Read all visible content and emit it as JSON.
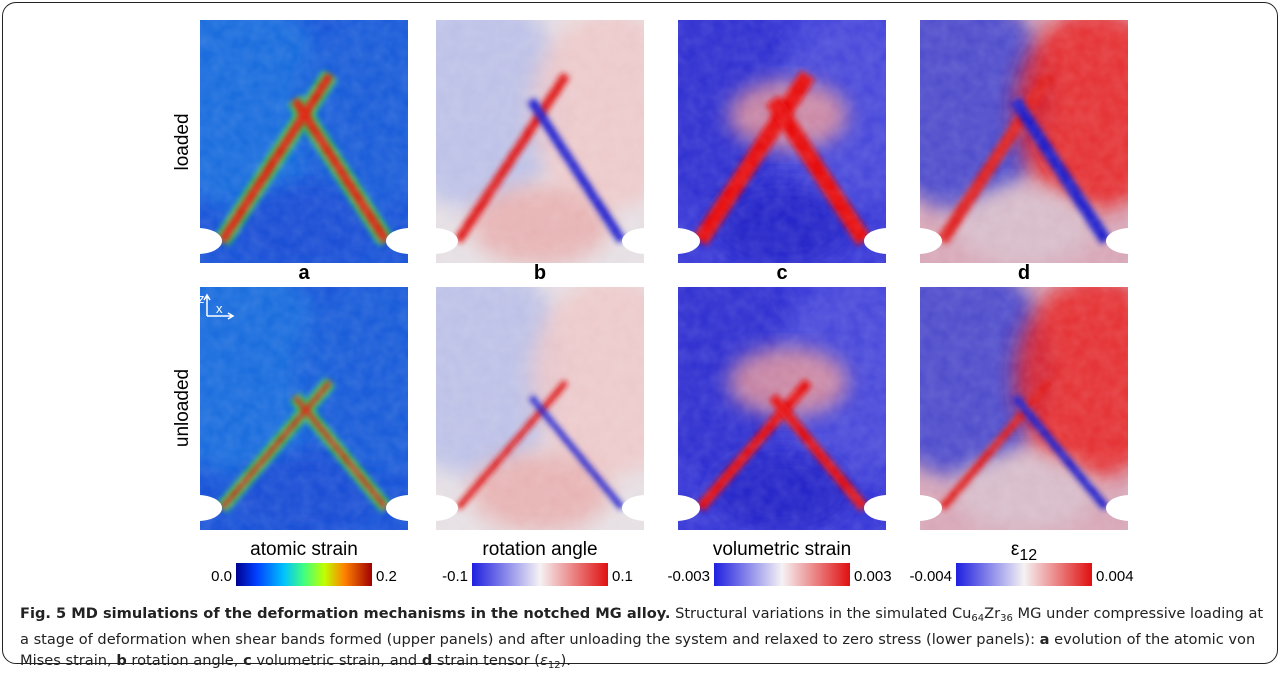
{
  "row_labels": [
    "loaded",
    "unloaded"
  ],
  "panel_labels": [
    "a",
    "b",
    "c",
    "d"
  ],
  "axes_indicator": {
    "z": "z",
    "x": "x"
  },
  "colorbars": [
    {
      "title": "atomic strain",
      "min": "0.0",
      "max": "0.2"
    },
    {
      "title": "rotation angle",
      "min": "-0.1",
      "max": "0.1"
    },
    {
      "title": "volumetric strain",
      "min": "-0.003",
      "max": "0.003"
    },
    {
      "title_symbol": "ε",
      "title_sub": "12",
      "min": "-0.004",
      "max": "0.004"
    }
  ],
  "caption": [
    {
      "text": "Fig. 5 MD simulations of the deformation mechanisms in the notched MG alloy.",
      "style": "bold"
    },
    {
      "text": " Structural variations in the simulated Cu",
      "style": "normal"
    },
    {
      "text": "64",
      "style": "sub"
    },
    {
      "text": "Zr",
      "style": "normal"
    },
    {
      "text": "36",
      "style": "sub"
    },
    {
      "text": " MG under compressive loading at a stage of deformation when shear bands formed (upper panels) and after unloading the system and relaxed to zero stress (lower panels): ",
      "style": "normal"
    },
    {
      "text": "a",
      "style": "bold"
    },
    {
      "text": " evolution of the atomic von Mises strain, ",
      "style": "normal"
    },
    {
      "text": "b",
      "style": "bold"
    },
    {
      "text": " rotation angle, ",
      "style": "normal"
    },
    {
      "text": "c",
      "style": "bold"
    },
    {
      "text": " volumetric strain, and ",
      "style": "normal"
    },
    {
      "text": "d",
      "style": "bold"
    },
    {
      "text": " strain tensor (",
      "style": "normal"
    },
    {
      "text": "ε",
      "style": "italic"
    },
    {
      "text": "12",
      "style": "sub"
    },
    {
      "text": ").",
      "style": "normal"
    }
  ]
}
